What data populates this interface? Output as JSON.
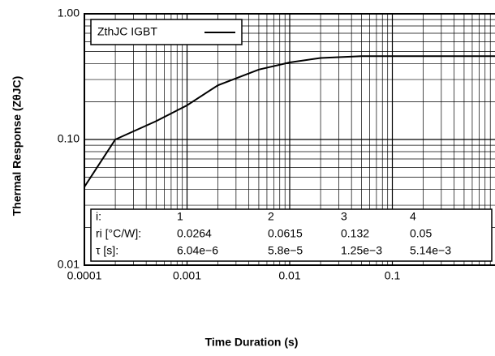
{
  "chart_data": {
    "type": "line",
    "x_label": "Time Duration (s)",
    "y_label": "Thermal Response (ZθJC)",
    "x": [
      0.0001,
      0.0002,
      0.0005,
      0.001,
      0.002,
      0.005,
      0.01,
      0.02,
      0.05,
      0.1,
      1
    ],
    "series": [
      {
        "name": "ZthJC IGBT",
        "color": "#000000",
        "values": [
          0.042,
          0.1,
          0.14,
          0.187,
          0.27,
          0.36,
          0.41,
          0.445,
          0.46,
          0.46,
          0.46
        ]
      }
    ],
    "xlim": [
      0.0001,
      1
    ],
    "ylim": [
      0.01,
      1
    ],
    "xticks": [
      0.0001,
      0.001,
      0.01,
      0.1
    ],
    "yticks": [
      {
        "value": 0.01,
        "label": "0.01"
      },
      {
        "value": 0.1,
        "label": "0.10"
      },
      {
        "value": 1,
        "label": "1.00"
      }
    ],
    "log_x": true,
    "log_y": true,
    "grid": true,
    "table": {
      "rows": [
        [
          "i:",
          "1",
          "2",
          "3",
          "4"
        ],
        [
          "ri [°C/W]:",
          "0.0264",
          "0.0615",
          "0.132",
          "0.05"
        ],
        [
          "τ [s]:",
          "6.04e−6",
          "5.8e−5",
          "1.25e−3",
          "5.14e−3"
        ]
      ]
    }
  }
}
